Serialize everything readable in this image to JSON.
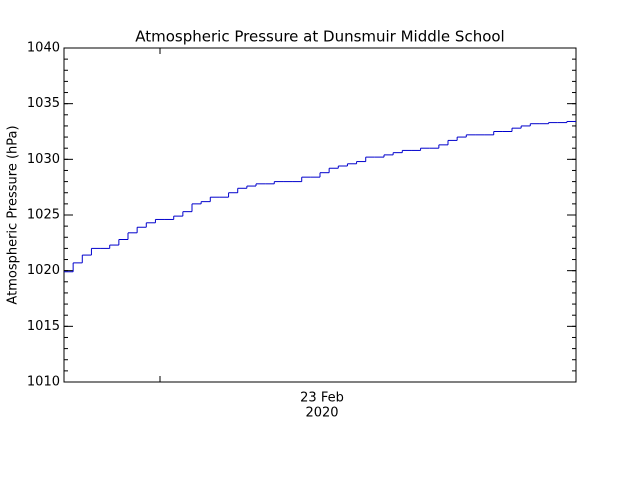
{
  "chart_data": {
    "type": "step",
    "title": "Atmospheric Pressure at Dunsmuir Middle School",
    "y_label": "Atmospheric Pressure (hPa)",
    "x_tick_label": [
      "23 Feb",
      "2020"
    ],
    "color": "#0000cc",
    "ylim": [
      1010,
      1040
    ],
    "yticks": [
      1010,
      1015,
      1020,
      1025,
      1030,
      1035,
      1040
    ],
    "values": [
      1019.9,
      1020.7,
      1021.4,
      1022.0,
      1022.0,
      1022.3,
      1022.8,
      1023.4,
      1023.9,
      1024.3,
      1024.6,
      1024.6,
      1024.9,
      1025.3,
      1026.0,
      1026.2,
      1026.6,
      1026.6,
      1027.0,
      1027.4,
      1027.6,
      1027.8,
      1027.8,
      1028.0,
      1028.0,
      1028.0,
      1028.4,
      1028.4,
      1028.8,
      1029.2,
      1029.4,
      1029.6,
      1029.8,
      1030.2,
      1030.2,
      1030.4,
      1030.6,
      1030.8,
      1030.8,
      1031.0,
      1031.0,
      1031.3,
      1031.7,
      1032.0,
      1032.2,
      1032.2,
      1032.2,
      1032.5,
      1032.5,
      1032.8,
      1033.0,
      1033.2,
      1033.2,
      1033.3,
      1033.3,
      1033.4
    ]
  }
}
